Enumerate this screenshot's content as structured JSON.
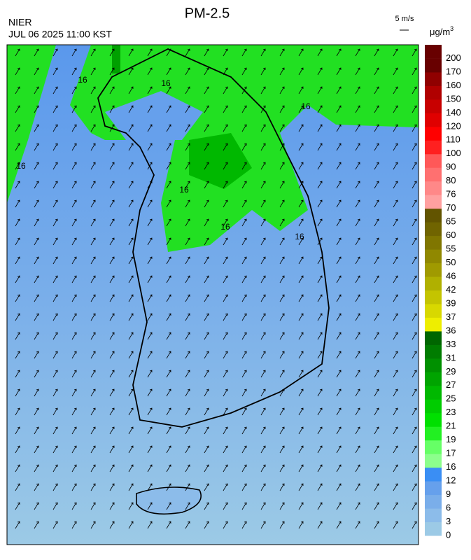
{
  "header": {
    "title": "PM-2.5",
    "agency": "NIER",
    "datetime": "JUL 06 2025 11:00 KST",
    "wind_scale": "5 m/s"
  },
  "legend": {
    "unit": "μg/m",
    "unit_exponent": "3",
    "labels": [
      "0",
      "3",
      "6",
      "9",
      "12",
      "16",
      "17",
      "19",
      "21",
      "23",
      "25",
      "27",
      "29",
      "31",
      "33",
      "36",
      "37",
      "39",
      "42",
      "46",
      "50",
      "55",
      "60",
      "65",
      "70",
      "76",
      "80",
      "90",
      "100",
      "110",
      "120",
      "140",
      "150",
      "160",
      "170",
      "200"
    ],
    "colors": [
      "#9ccae6",
      "#8cbcea",
      "#7aaeea",
      "#66a0ec",
      "#3a8ef4",
      "#8cff8c",
      "#66ff66",
      "#22f022",
      "#00e000",
      "#00cc00",
      "#00b800",
      "#00a400",
      "#009000",
      "#007c00",
      "#006600",
      "#eeee00",
      "#d8d800",
      "#c4c400",
      "#b0b000",
      "#a09a00",
      "#908800",
      "#807600",
      "#706400",
      "#625400",
      "#ffa0a0",
      "#ff8888",
      "#ff7070",
      "#ff5858",
      "#ff2020",
      "#ff0000",
      "#e00000",
      "#c80000",
      "#b00000",
      "#900000",
      "#680000"
    ]
  },
  "map": {
    "contour_labels": [
      "16",
      "16",
      "16",
      "16",
      "16",
      "16",
      "16"
    ]
  }
}
